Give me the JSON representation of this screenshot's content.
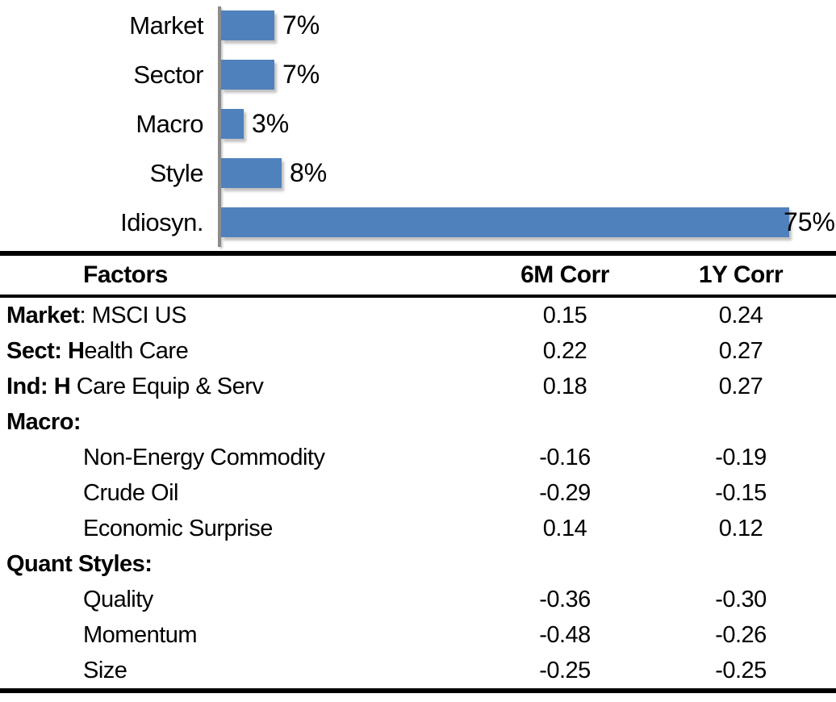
{
  "colors": {
    "bar_fill": "#4f81bd",
    "axis_line": "#8c8c8c",
    "rule_lines": "#000000",
    "text": "#000000"
  },
  "chart_data": [
    {
      "type": "bar",
      "orientation": "horizontal",
      "title": "",
      "categories": [
        "Market",
        "Sector",
        "Macro",
        "Style",
        "Idiosyn."
      ],
      "values": [
        7,
        7,
        3,
        8,
        75
      ],
      "data_labels": [
        "7%",
        "7%",
        "3%",
        "8%",
        "75%"
      ],
      "xlim": [
        0,
        75
      ],
      "grid": false,
      "legend": false,
      "bar_color": "#4f81bd",
      "axis_color": "#8c8c8c"
    },
    {
      "type": "table",
      "headers": [
        "Factors",
        "6M Corr",
        "1Y Corr"
      ],
      "rows": [
        {
          "factor_bold": "Market",
          "factor_rest": ": MSCI US",
          "indent": false,
          "corr_6m": "0.15",
          "corr_1y": "0.24"
        },
        {
          "factor_bold": "Sect: H",
          "factor_rest": "ealth Care",
          "indent": false,
          "corr_6m": "0.22",
          "corr_1y": "0.27"
        },
        {
          "factor_bold": "Ind: H",
          "factor_rest": " Care Equip & Serv",
          "indent": false,
          "corr_6m": "0.18",
          "corr_1y": "0.27"
        },
        {
          "factor_bold": "Macro:",
          "factor_rest": "",
          "indent": false,
          "corr_6m": "",
          "corr_1y": ""
        },
        {
          "factor_bold": "",
          "factor_rest": "Non-Energy Commodity",
          "indent": true,
          "corr_6m": "-0.16",
          "corr_1y": "-0.19"
        },
        {
          "factor_bold": "",
          "factor_rest": "Crude Oil",
          "indent": true,
          "corr_6m": "-0.29",
          "corr_1y": "-0.15"
        },
        {
          "factor_bold": "",
          "factor_rest": "Economic Surprise",
          "indent": true,
          "corr_6m": "0.14",
          "corr_1y": "0.12"
        },
        {
          "factor_bold": "Quant Styles:",
          "factor_rest": "",
          "indent": false,
          "corr_6m": "",
          "corr_1y": ""
        },
        {
          "factor_bold": "",
          "factor_rest": "Quality",
          "indent": true,
          "corr_6m": "-0.36",
          "corr_1y": "-0.30"
        },
        {
          "factor_bold": "",
          "factor_rest": "Momentum",
          "indent": true,
          "corr_6m": "-0.48",
          "corr_1y": "-0.26"
        },
        {
          "factor_bold": "",
          "factor_rest": "Size",
          "indent": true,
          "corr_6m": "-0.25",
          "corr_1y": "-0.25"
        }
      ]
    }
  ]
}
